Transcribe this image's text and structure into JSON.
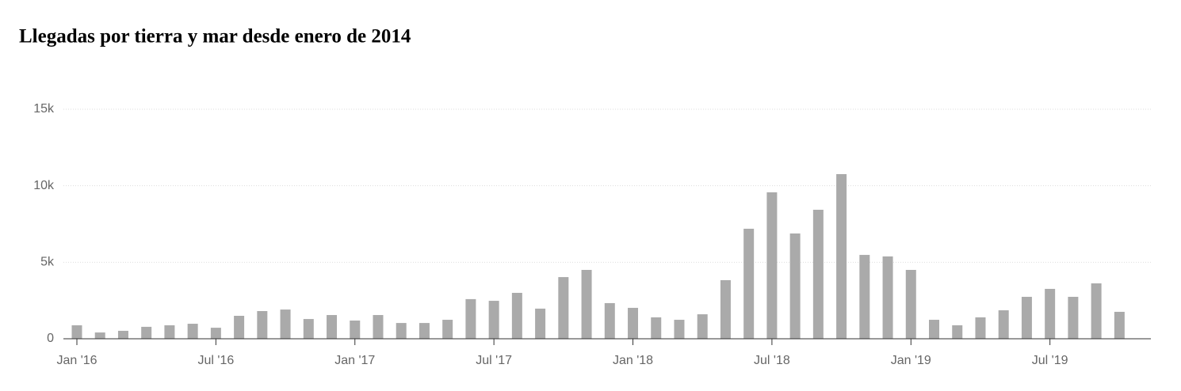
{
  "chart_data": {
    "type": "bar",
    "title": "Llegadas por tierra y mar desde enero de 2014",
    "categories": [
      "Jan '16",
      null,
      null,
      null,
      null,
      null,
      "Jul '16",
      null,
      null,
      null,
      null,
      null,
      "Jan '17",
      null,
      null,
      null,
      null,
      null,
      "Jul '17",
      null,
      null,
      null,
      null,
      null,
      "Jan '18",
      null,
      null,
      null,
      null,
      null,
      "Jul '18",
      null,
      null,
      null,
      null,
      null,
      "Jan '19",
      null,
      null,
      null,
      null,
      null,
      "Jul '19",
      null,
      null,
      null
    ],
    "values": [
      880,
      410,
      520,
      780,
      880,
      980,
      720,
      1500,
      1810,
      1910,
      1290,
      1550,
      1190,
      1550,
      1030,
      1030,
      1240,
      2590,
      2480,
      3000,
      1970,
      4030,
      4500,
      2330,
      2020,
      1400,
      1240,
      1600,
      3830,
      7190,
      9570,
      6880,
      8430,
      10760,
      5480,
      5380,
      4500,
      1240,
      880,
      1400,
      1860,
      2740,
      3260,
      2740,
      3620,
      1760
    ],
    "color": "#aaaaaa",
    "ylim": [
      0,
      15000
    ],
    "yticks": [
      0,
      {
        "value": 5000,
        "label": "5k"
      },
      {
        "value": 10000,
        "label": "10k"
      },
      {
        "value": 15000,
        "label": "15k"
      }
    ],
    "grid": true
  }
}
